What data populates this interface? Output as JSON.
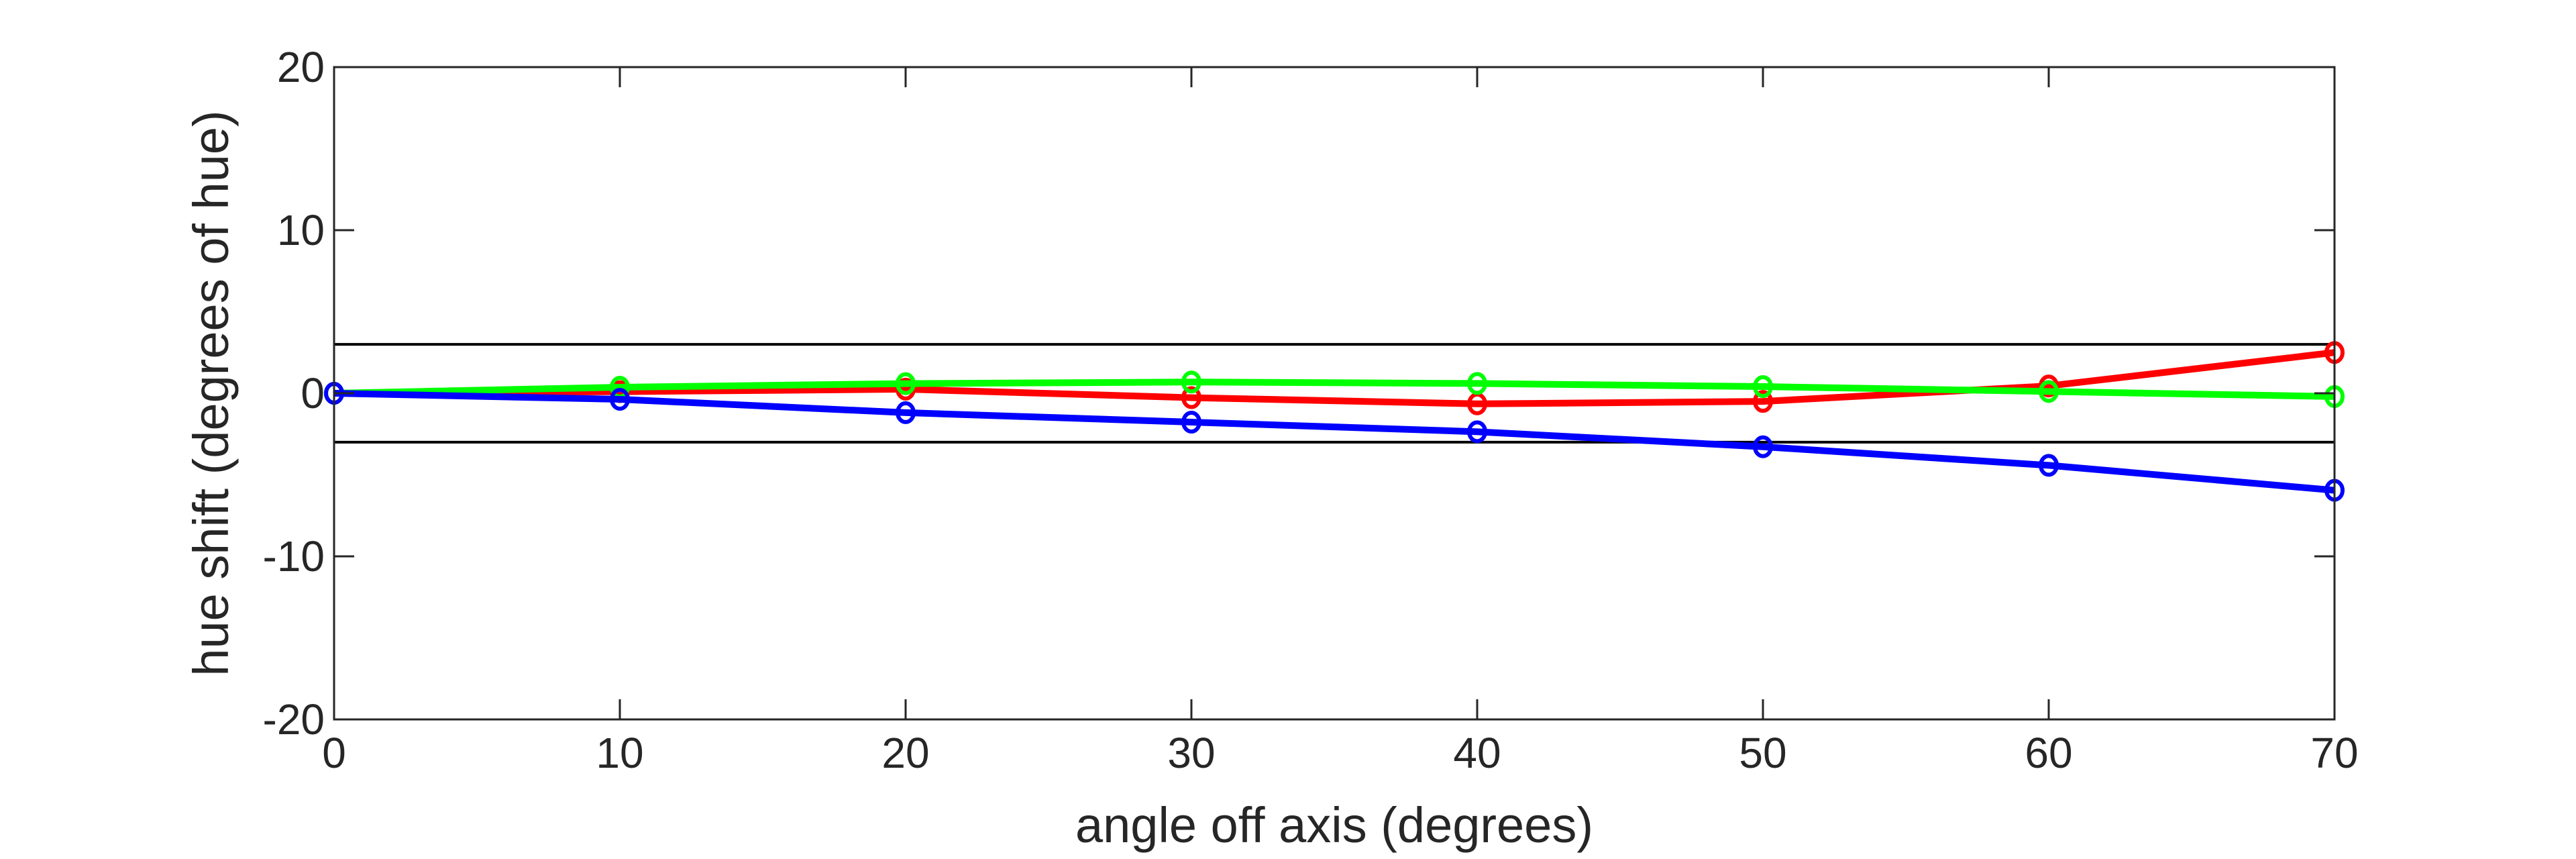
{
  "chart_data": {
    "type": "line",
    "title": "",
    "xlabel": "angle off axis (degrees)",
    "ylabel": "hue shift (degrees of hue)",
    "xlim": [
      0,
      70
    ],
    "ylim": [
      -20,
      20
    ],
    "xticks": [
      0,
      10,
      20,
      30,
      40,
      50,
      60,
      70
    ],
    "yticks": [
      -20,
      -10,
      0,
      10,
      20
    ],
    "reference_lines": [
      3,
      -3
    ],
    "grid": false,
    "legend": "none",
    "x": [
      0,
      10,
      20,
      30,
      40,
      50,
      60,
      70
    ],
    "series": [
      {
        "name": "red",
        "color": "#ff0000",
        "values": [
          0,
          0.1,
          0.25,
          -0.27,
          -0.65,
          -0.5,
          0.45,
          2.5
        ]
      },
      {
        "name": "green",
        "color": "#00ff00",
        "values": [
          0,
          0.37,
          0.59,
          0.69,
          0.6,
          0.41,
          0.11,
          -0.2
        ]
      },
      {
        "name": "blue",
        "color": "#0000ff",
        "values": [
          0,
          -0.37,
          -1.19,
          -1.77,
          -2.36,
          -3.28,
          -4.42,
          -5.95
        ]
      }
    ]
  }
}
